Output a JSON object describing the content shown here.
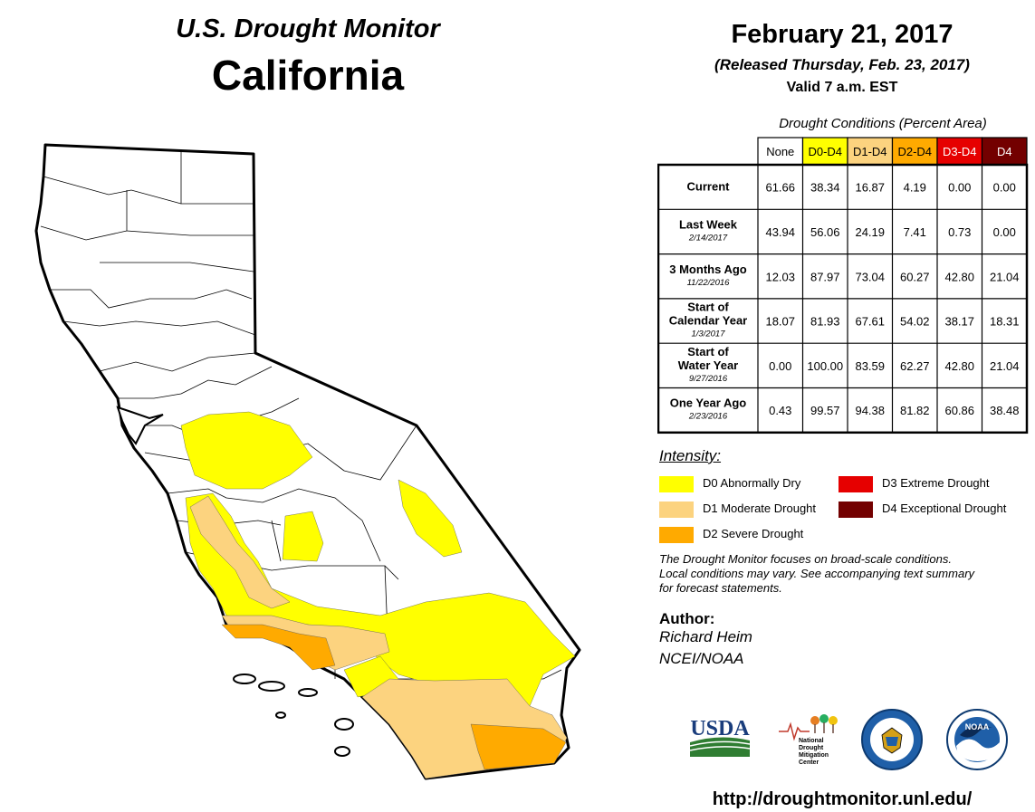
{
  "header": {
    "title": "U.S. Drought Monitor",
    "region": "California",
    "date": "February 21, 2017",
    "released": "(Released Thursday, Feb. 23, 2017)",
    "valid": "Valid 7 a.m. EST"
  },
  "table": {
    "caption": "Drought Conditions (Percent Area)",
    "columns": [
      {
        "label": "None",
        "color": "#ffffff",
        "text_color": "#000000"
      },
      {
        "label": "D0-D4",
        "color": "#ffff00",
        "text_color": "#000000"
      },
      {
        "label": "D1-D4",
        "color": "#fcd37f",
        "text_color": "#000000"
      },
      {
        "label": "D2-D4",
        "color": "#ffaa00",
        "text_color": "#000000"
      },
      {
        "label": "D3-D4",
        "color": "#e60000",
        "text_color": "#ffffff"
      },
      {
        "label": "D4",
        "color": "#730000",
        "text_color": "#ffffff"
      }
    ],
    "rows": [
      {
        "label": [
          "Current"
        ],
        "date": "",
        "values": [
          "61.66",
          "38.34",
          "16.87",
          "4.19",
          "0.00",
          "0.00"
        ]
      },
      {
        "label": [
          "Last Week"
        ],
        "date": "2/14/2017",
        "values": [
          "43.94",
          "56.06",
          "24.19",
          "7.41",
          "0.73",
          "0.00"
        ]
      },
      {
        "label": [
          "3 Months Ago"
        ],
        "date": "11/22/2016",
        "values": [
          "12.03",
          "87.97",
          "73.04",
          "60.27",
          "42.80",
          "21.04"
        ]
      },
      {
        "label": [
          "Start of",
          "Calendar Year"
        ],
        "date": "1/3/2017",
        "values": [
          "18.07",
          "81.93",
          "67.61",
          "54.02",
          "38.17",
          "18.31"
        ]
      },
      {
        "label": [
          "Start of",
          "Water Year"
        ],
        "date": "9/27/2016",
        "values": [
          "0.00",
          "100.00",
          "83.59",
          "62.27",
          "42.80",
          "21.04"
        ]
      },
      {
        "label": [
          "One Year Ago"
        ],
        "date": "2/23/2016",
        "values": [
          "0.43",
          "99.57",
          "94.38",
          "81.82",
          "60.86",
          "38.48"
        ]
      }
    ]
  },
  "legend": {
    "title": "Intensity:",
    "items": [
      {
        "label": "D0 Abnormally Dry",
        "color": "#ffff00"
      },
      {
        "label": "D1 Moderate Drought",
        "color": "#fcd37f"
      },
      {
        "label": "D2 Severe Drought",
        "color": "#ffaa00"
      },
      {
        "label": "D3 Extreme Drought",
        "color": "#e60000"
      },
      {
        "label": "D4 Exceptional Drought",
        "color": "#730000"
      }
    ]
  },
  "note": {
    "line1": "The Drought Monitor focuses on broad-scale conditions.",
    "line2": "Local conditions may vary. See accompanying text summary",
    "line3": "for forecast statements."
  },
  "author": {
    "heading": "Author:",
    "name": "Richard Heim",
    "org": "NCEI/NOAA"
  },
  "logos": {
    "usda": "USDA",
    "ndmc": [
      "National",
      "Drought",
      "Mitigation",
      "Center"
    ],
    "noaa": "NOAA"
  },
  "footer": {
    "url": "http://droughtmonitor.unl.edu/"
  }
}
